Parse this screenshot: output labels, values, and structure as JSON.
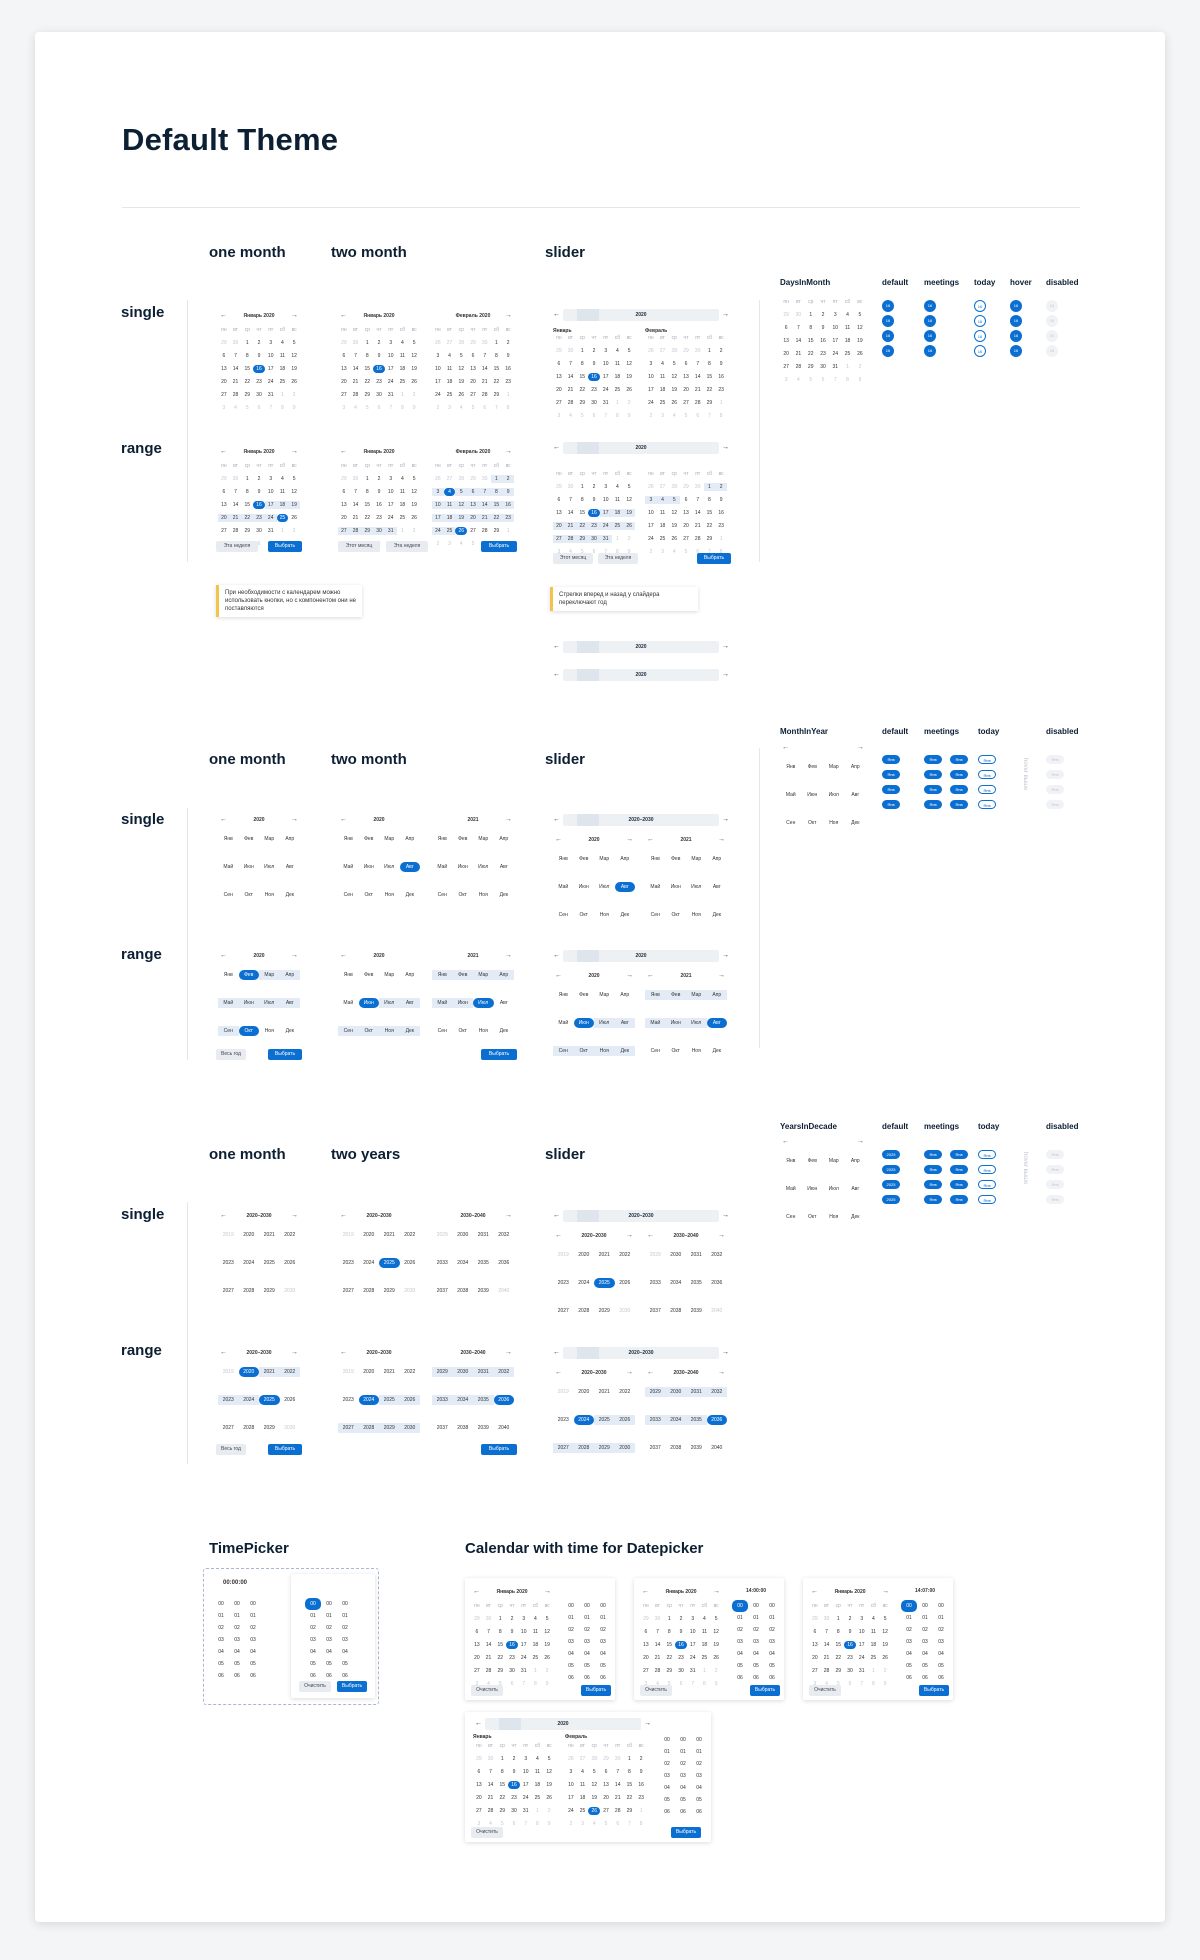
{
  "page_title": "Default Theme",
  "sections": {
    "cols_1": [
      "one month",
      "two month",
      "slider"
    ],
    "cols_2": [
      "one month",
      "two month",
      "slider"
    ],
    "cols_3": [
      "one month",
      "two years",
      "slider"
    ],
    "rows": [
      "single",
      "range"
    ]
  },
  "labels": {
    "year_2020": "2020",
    "year_2021": "2021",
    "year_2025": "2025",
    "jan_2020": "Январь 2020",
    "feb_2020": "Февраль 2020",
    "jan": "Январь",
    "feb": "Февраль",
    "decade_1": "2020–2030",
    "decade_2": "2030–2040",
    "decade_3": "2030–2040",
    "time_0": "00:00:00",
    "time_14": "14:00:00",
    "time_1407": "14:07:00"
  },
  "weekdays": [
    "пн",
    "вт",
    "ср",
    "чт",
    "пт",
    "сб",
    "вс"
  ],
  "months_short": [
    "Янв",
    "Фев",
    "Мар",
    "Апр",
    "Май",
    "Июн",
    "Июл",
    "Авг",
    "Сен",
    "Окт",
    "Ноя",
    "Дек"
  ],
  "buttons": {
    "select": "Выбрать",
    "this_week": "Эта неделя",
    "this_month": "Этот месяц",
    "whole_year": "Весь год",
    "clear": "Очистить"
  },
  "notes": {
    "buttons_note": "При необходимости с календарем можно использовать кнопки, но с компонентом они не поставляются",
    "slider_note": "Стрелки вперед и назад у слайдера переключают год"
  },
  "legend": {
    "days_title": "DaysInMonth",
    "months_title": "MonthInYear",
    "years_title": "YearsInDecade",
    "default": "default",
    "meetings": "meetings",
    "today": "today",
    "hover": "hover",
    "disabled": "disabled",
    "hover_rotated": "hover выше"
  },
  "bottom": {
    "timepicker_title": "TimePicker",
    "calendar_time_title": "Calendar with time for Datepicker"
  },
  "colors": {
    "accent": "#0b6fd1",
    "range": "#e3ecf6",
    "note": "#f2c44a"
  },
  "icons": {
    "prev": "arrow-left-icon",
    "next": "arrow-right-icon",
    "cursor": "hand-cursor-icon"
  }
}
